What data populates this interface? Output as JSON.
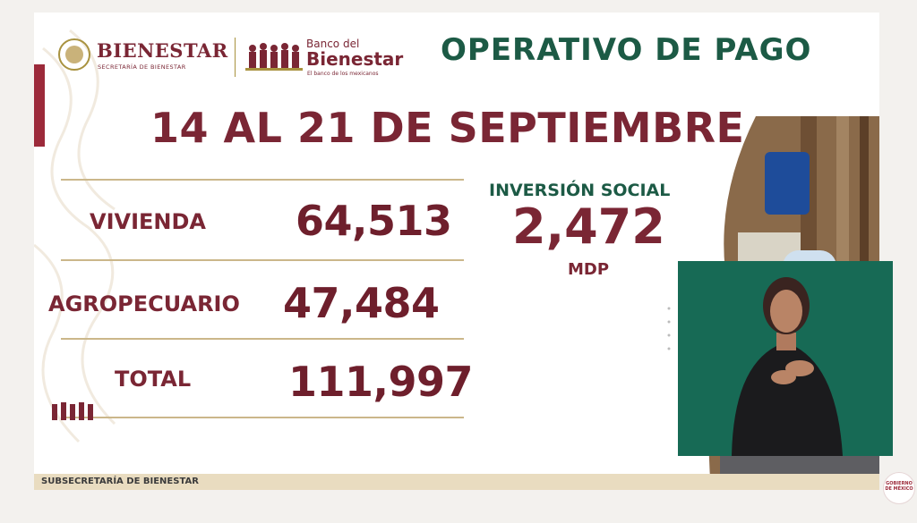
{
  "header": {
    "secretaria_logo_text": "BIENESTAR",
    "secretaria_subtext": "SECRETARÍA DE BIENESTAR",
    "bank_small": "Banco del",
    "bank_big": "Bienestar",
    "bank_tagline": "El banco de los mexicanos",
    "title": "OPERATIVO DE PAGO"
  },
  "period": "14 AL 21 DE SEPTIEMBRE",
  "rows": [
    {
      "label": "VIVIENDA",
      "value": "64,513"
    },
    {
      "label": "AGROPECUARIO",
      "value": "47,484"
    },
    {
      "label": "TOTAL",
      "value": "111,997"
    }
  ],
  "investment": {
    "title": "INVERSIÓN SOCIAL",
    "value": "2,472",
    "unit": "MDP"
  },
  "footer": "SUBSECRETARÍA DE BIENESTAR",
  "badge_text": "GOBIERNO DE MÉXICO",
  "colors": {
    "maroon": "#7a2634",
    "green": "#1c5a45",
    "gold_line": "#cbb78a",
    "interpreter_bg": "#176a55"
  }
}
